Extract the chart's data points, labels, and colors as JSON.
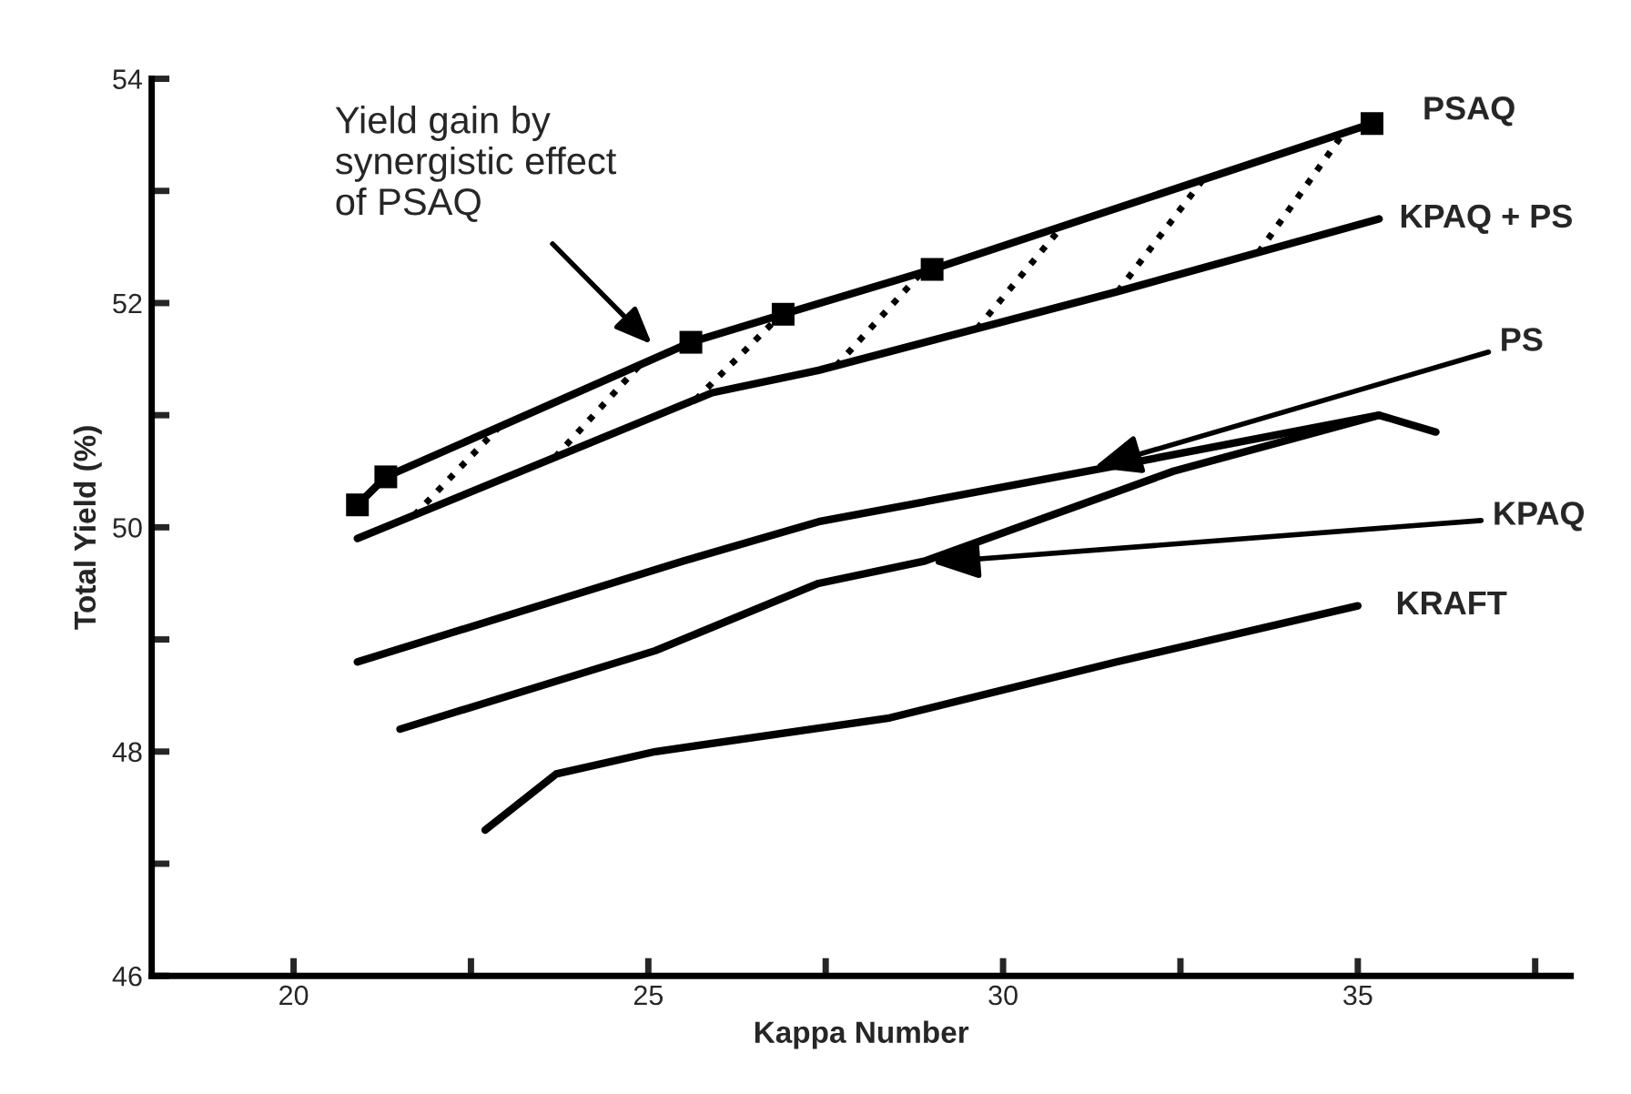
{
  "chart_data": {
    "type": "line",
    "xlabel": "Kappa Number",
    "ylabel": "Total Yield (%)",
    "xlim": [
      18,
      38
    ],
    "ylim": [
      46,
      54
    ],
    "xticks": [
      20,
      {
        "value": 22.5,
        "label": null
      },
      25,
      {
        "value": 27.5,
        "label": null
      },
      30,
      {
        "value": 32.5,
        "label": null
      },
      35,
      {
        "value": 37.5,
        "label": null
      }
    ],
    "yticks": [
      46,
      {
        "value": 47,
        "label": null
      },
      48,
      {
        "value": 49,
        "label": null
      },
      50,
      {
        "value": 51,
        "label": null
      },
      52,
      {
        "value": 53,
        "label": null
      },
      54
    ],
    "grid": false,
    "legend": false,
    "line_style": "solid",
    "series": [
      {
        "name": "PSAQ",
        "color": "#000000",
        "marker": "square",
        "x": [
          20.9,
          21.3,
          25.6,
          26.9,
          29.0,
          35.2
        ],
        "values": [
          50.2,
          50.45,
          51.65,
          51.9,
          52.3,
          53.6
        ]
      },
      {
        "name": "KPAQ + PS",
        "color": "#000000",
        "x": [
          20.9,
          25.9,
          27.4,
          31.6,
          35.3
        ],
        "values": [
          49.9,
          51.2,
          51.4,
          52.1,
          52.75
        ]
      },
      {
        "name": "PS",
        "color": "#000000",
        "x": [
          20.9,
          25.5,
          27.4,
          31.6,
          35.3,
          36.1
        ],
        "values": [
          48.8,
          49.7,
          50.05,
          50.55,
          51.0,
          50.85
        ]
      },
      {
        "name": "KPAQ",
        "color": "#000000",
        "x": [
          21.5,
          25.1,
          27.4,
          28.9,
          32.4,
          35.3
        ],
        "values": [
          48.2,
          48.9,
          49.5,
          49.7,
          50.5,
          51.0
        ]
      },
      {
        "name": "KRAFT",
        "color": "#000000",
        "x": [
          22.7,
          23.7,
          25.1,
          28.4,
          31.6,
          35.0
        ],
        "values": [
          47.3,
          47.8,
          48.0,
          48.3,
          48.8,
          49.3
        ]
      }
    ],
    "annotations": [
      "Yield gain by\nsynergistic effect\nof PSAQ"
    ]
  }
}
